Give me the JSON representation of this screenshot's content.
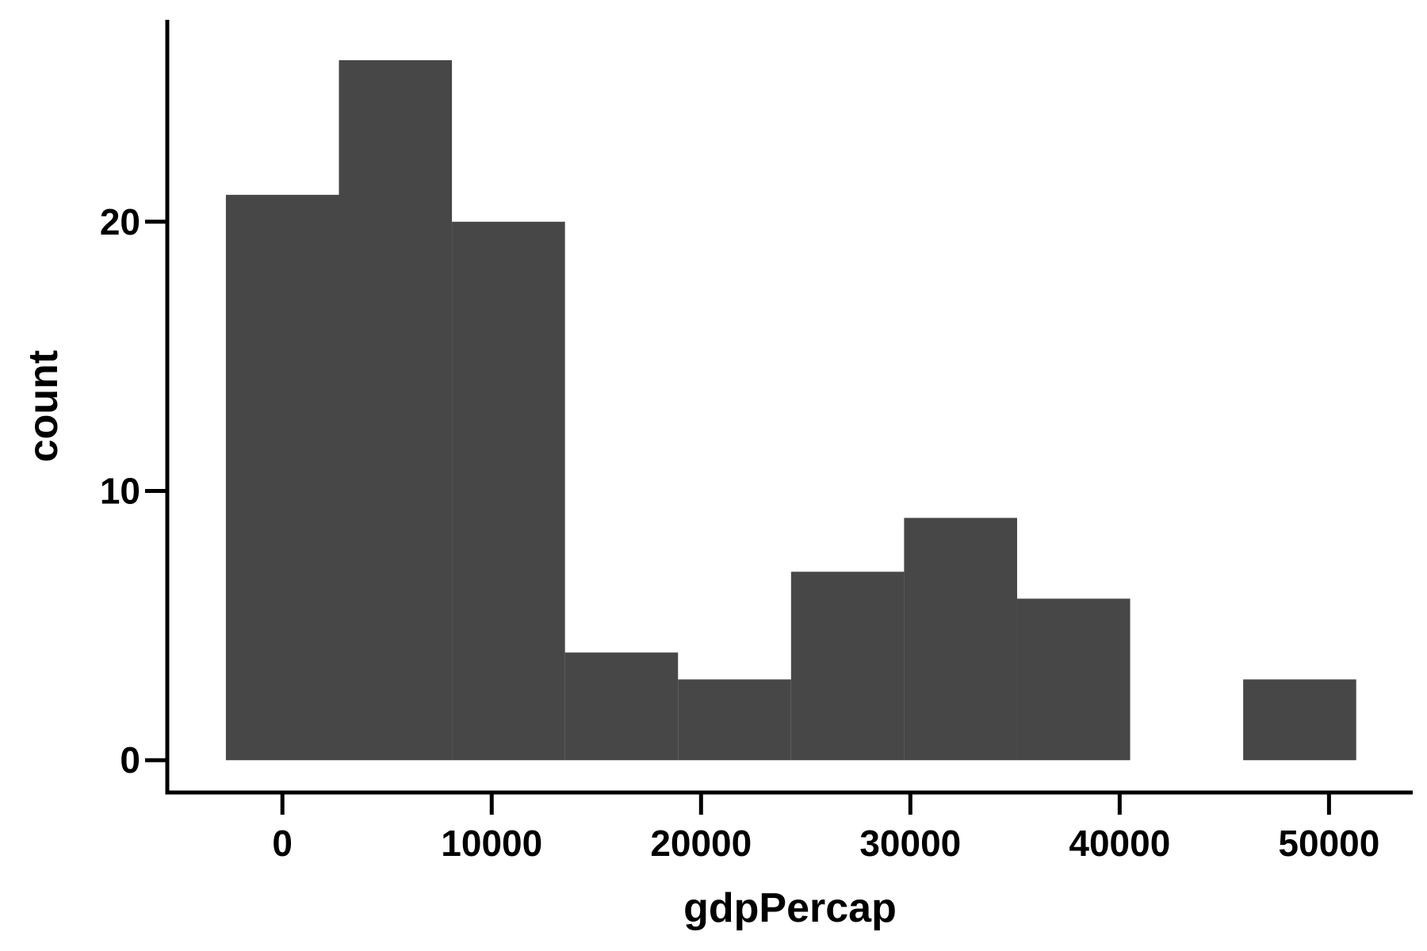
{
  "chart_data": {
    "type": "bar",
    "subtype": "histogram",
    "xlabel": "gdpPercap",
    "ylabel": "count",
    "bins": [
      {
        "x0": -2700,
        "x1": 2700,
        "count": 21
      },
      {
        "x0": 2700,
        "x1": 8100,
        "count": 26
      },
      {
        "x0": 8100,
        "x1": 13500,
        "count": 20
      },
      {
        "x0": 13500,
        "x1": 18900,
        "count": 4
      },
      {
        "x0": 18900,
        "x1": 24300,
        "count": 3
      },
      {
        "x0": 24300,
        "x1": 29700,
        "count": 7
      },
      {
        "x0": 29700,
        "x1": 35100,
        "count": 9
      },
      {
        "x0": 35100,
        "x1": 40500,
        "count": 6
      },
      {
        "x0": 40500,
        "x1": 45900,
        "count": 0
      },
      {
        "x0": 45900,
        "x1": 51300,
        "count": 3
      }
    ],
    "xlim": [
      -5500,
      54000
    ],
    "ylim": [
      -1.2,
      27.5
    ],
    "xticks": [
      0,
      10000,
      20000,
      30000,
      40000,
      50000
    ],
    "xtick_labels": [
      "0",
      "10000",
      "20000",
      "30000",
      "40000",
      "50000"
    ],
    "yticks": [
      0,
      10,
      20
    ],
    "ytick_labels": [
      "0",
      "10",
      "20"
    ],
    "grid": false,
    "legend": "none",
    "bar_color": "#474747",
    "axis_color": "#000000"
  }
}
